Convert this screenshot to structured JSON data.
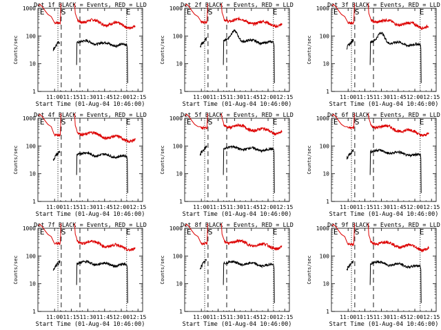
{
  "colors": {
    "events": "#000000",
    "lld": "#dd0000",
    "axes": "#000000",
    "background": "#ffffff"
  },
  "chart_data": [
    {
      "type": "line",
      "title": "Det 1f BLACK = Events, RED = LLD",
      "xlabel": "Start Time (01-Aug-04 10:46:00)",
      "ylabel": "Counts/sec",
      "yscale": "log",
      "ylim": [
        1,
        1000
      ],
      "x_ticks": [
        "11:00",
        "11:15",
        "11:30",
        "11:45",
        "12:00",
        "12:15"
      ],
      "y_ticks": [
        "1",
        "10",
        "100",
        "1000"
      ],
      "markers": [
        "E",
        "S",
        "E"
      ],
      "grid": false,
      "lld_level": 300,
      "lld_end": 230,
      "events_level": 65,
      "events_end": 45,
      "events_pre": 40,
      "bump": 0
    },
    {
      "type": "line",
      "title": "Det 2f BLACK = Events, RED = LLD",
      "xlabel": "Start Time (01-Aug-04 10:46:00)",
      "ylabel": "Counts/sec",
      "yscale": "log",
      "ylim": [
        1,
        1000
      ],
      "x_ticks": [
        "11:00",
        "11:15",
        "11:30",
        "11:45",
        "12:00",
        "12:15"
      ],
      "y_ticks": [
        "1",
        "10",
        "100",
        "1000"
      ],
      "markers": [
        "E",
        "S",
        "E"
      ],
      "grid": false,
      "lld_level": 320,
      "lld_end": 260,
      "events_level": 80,
      "events_end": 55,
      "events_pre": 50,
      "bump": 1
    },
    {
      "type": "line",
      "title": "Det 3f BLACK = Events, RED = LLD",
      "xlabel": "Start Time (01-Aug-04 10:46:00)",
      "ylabel": "Counts/sec",
      "yscale": "log",
      "ylim": [
        1,
        1000
      ],
      "x_ticks": [
        "11:00",
        "11:15",
        "11:30",
        "11:45",
        "12:00",
        "12:15"
      ],
      "y_ticks": [
        "1",
        "10",
        "100",
        "1000"
      ],
      "markers": [
        "E",
        "S",
        "E"
      ],
      "grid": false,
      "lld_level": 300,
      "lld_end": 230,
      "events_level": 70,
      "events_end": 45,
      "events_pre": 45,
      "bump": 1
    },
    {
      "type": "line",
      "title": "Det 4f BLACK = Events, RED = LLD",
      "xlabel": "Start Time (01-Aug-04 10:46:00)",
      "ylabel": "Counts/sec",
      "yscale": "log",
      "ylim": [
        1,
        1000
      ],
      "x_ticks": [
        "11:00",
        "11:15",
        "11:30",
        "11:45",
        "12:00",
        "12:15"
      ],
      "y_ticks": [
        "1",
        "10",
        "100",
        "1000"
      ],
      "markers": [
        "E",
        "S",
        "E"
      ],
      "grid": false,
      "lld_level": 250,
      "lld_end": 170,
      "events_level": 55,
      "events_end": 40,
      "events_pre": 40,
      "bump": 0
    },
    {
      "type": "line",
      "title": "Det 5f BLACK = Events, RED = LLD",
      "xlabel": "Start Time (01-Aug-04 10:46:00)",
      "ylabel": "Counts/sec",
      "yscale": "log",
      "ylim": [
        1,
        1000
      ],
      "x_ticks": [
        "11:00",
        "11:15",
        "11:30",
        "11:45",
        "12:00",
        "12:15"
      ],
      "y_ticks": [
        "1",
        "10",
        "100",
        "1000"
      ],
      "markers": [
        "E",
        "S",
        "E"
      ],
      "grid": false,
      "lld_level": 450,
      "lld_end": 320,
      "events_level": 90,
      "events_end": 70,
      "events_pre": 60,
      "bump": 0
    },
    {
      "type": "line",
      "title": "Det 6f BLACK = Events, RED = LLD",
      "xlabel": "Start Time (01-Aug-04 10:46:00)",
      "ylabel": "Counts/sec",
      "yscale": "log",
      "ylim": [
        1,
        1000
      ],
      "x_ticks": [
        "11:00",
        "11:15",
        "11:30",
        "11:45",
        "12:00",
        "12:15"
      ],
      "y_ticks": [
        "1",
        "10",
        "100",
        "1000"
      ],
      "markers": [
        "E",
        "S",
        "E"
      ],
      "grid": false,
      "lld_level": 450,
      "lld_end": 280,
      "events_level": 70,
      "events_end": 45,
      "events_pre": 45,
      "bump": 0
    },
    {
      "type": "line",
      "title": "Det 7f BLACK = Events, RED = LLD",
      "xlabel": "Start Time (01-Aug-04 10:46:00)",
      "ylabel": "Counts/sec",
      "yscale": "log",
      "ylim": [
        1,
        1000
      ],
      "x_ticks": [
        "11:00",
        "11:15",
        "11:30",
        "11:45",
        "12:00",
        "12:15"
      ],
      "y_ticks": [
        "1",
        "10",
        "100",
        "1000"
      ],
      "markers": [
        "E",
        "S",
        "E"
      ],
      "grid": false,
      "lld_level": 280,
      "lld_end": 190,
      "events_level": 60,
      "events_end": 45,
      "events_pre": 40,
      "bump": 0
    },
    {
      "type": "line",
      "title": "Det 8f BLACK = Events, RED = LLD",
      "xlabel": "Start Time (01-Aug-04 10:46:00)",
      "ylabel": "Counts/sec",
      "yscale": "log",
      "ylim": [
        1,
        1000
      ],
      "x_ticks": [
        "11:00",
        "11:15",
        "11:30",
        "11:45",
        "12:00",
        "12:15"
      ],
      "y_ticks": [
        "1",
        "10",
        "100",
        "1000"
      ],
      "markers": [
        "E",
        "S",
        "E"
      ],
      "grid": false,
      "lld_level": 280,
      "lld_end": 210,
      "events_level": 60,
      "events_end": 45,
      "events_pre": 45,
      "bump": 0
    },
    {
      "type": "line",
      "title": "Det 9f BLACK = Events, RED = LLD",
      "xlabel": "Start Time (01-Aug-04 10:46:00)",
      "ylabel": "Counts/sec",
      "yscale": "log",
      "ylim": [
        1,
        1000
      ],
      "x_ticks": [
        "11:00",
        "11:15",
        "11:30",
        "11:45",
        "12:00",
        "12:15"
      ],
      "y_ticks": [
        "1",
        "10",
        "100",
        "1000"
      ],
      "markers": [
        "E",
        "S",
        "E"
      ],
      "grid": false,
      "lld_level": 260,
      "lld_end": 190,
      "events_level": 60,
      "events_end": 40,
      "events_pre": 40,
      "bump": 0
    }
  ]
}
